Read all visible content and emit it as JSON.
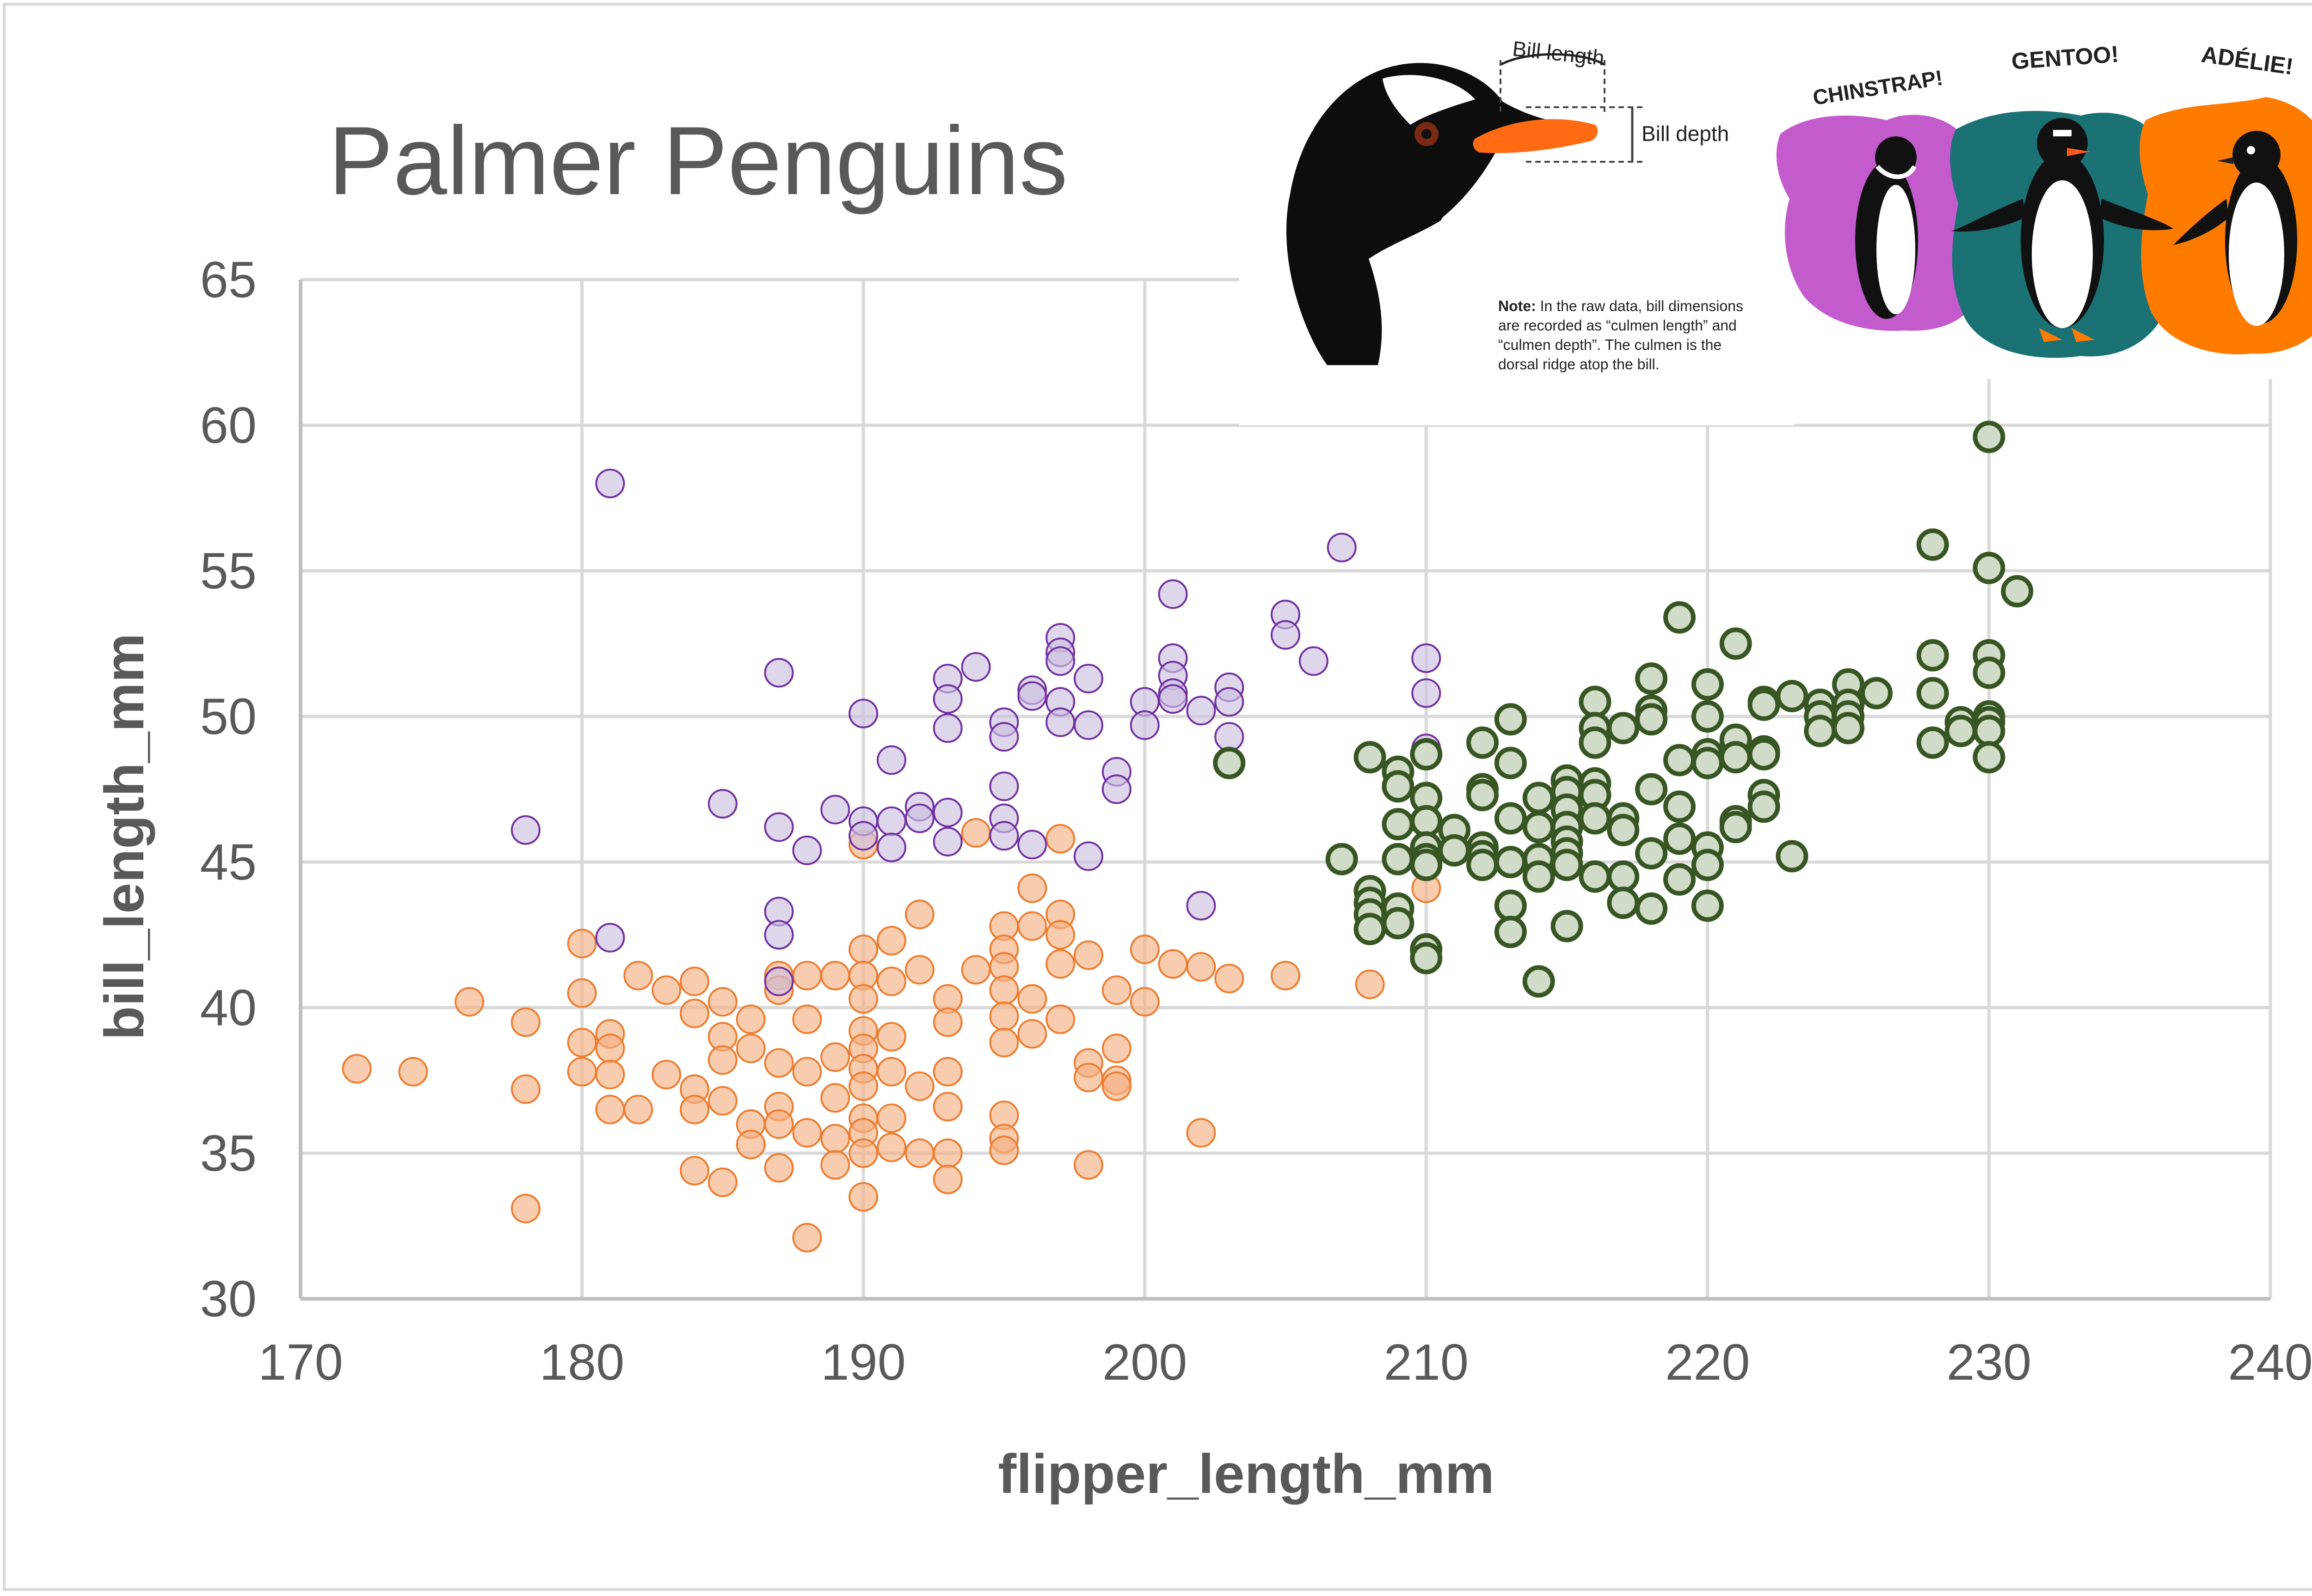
{
  "chart_data": {
    "type": "scatter",
    "title": "Palmer Penguins",
    "xlabel": "flipper_length_mm",
    "ylabel": "bill_length_mm",
    "xlim": [
      170,
      240
    ],
    "ylim": [
      30,
      65
    ],
    "xticks": [
      170,
      180,
      190,
      200,
      210,
      220,
      230,
      240
    ],
    "yticks": [
      30,
      35,
      40,
      45,
      50,
      55,
      60,
      65
    ],
    "grid": true,
    "legend": "none",
    "series": [
      {
        "color": "#f4b183",
        "stroke": "#ed7d31",
        "points": [
          [
            172,
            37.9
          ],
          [
            174,
            37.8
          ],
          [
            176,
            40.2
          ],
          [
            178,
            39.5
          ],
          [
            178,
            37.2
          ],
          [
            178,
            33.1
          ],
          [
            180,
            42.2
          ],
          [
            180,
            40.5
          ],
          [
            180,
            38.8
          ],
          [
            180,
            37.8
          ],
          [
            181,
            39.1
          ],
          [
            181,
            38.6
          ],
          [
            181,
            37.7
          ],
          [
            181,
            36.5
          ],
          [
            182,
            41.1
          ],
          [
            182,
            36.5
          ],
          [
            183,
            40.6
          ],
          [
            183,
            37.7
          ],
          [
            184,
            40.9
          ],
          [
            184,
            39.8
          ],
          [
            184,
            37.2
          ],
          [
            184,
            36.5
          ],
          [
            184,
            34.4
          ],
          [
            185,
            40.2
          ],
          [
            185,
            39.0
          ],
          [
            185,
            38.2
          ],
          [
            185,
            36.8
          ],
          [
            185,
            34.0
          ],
          [
            186,
            39.6
          ],
          [
            186,
            38.6
          ],
          [
            186,
            36.0
          ],
          [
            186,
            35.3
          ],
          [
            187,
            41.1
          ],
          [
            187,
            40.6
          ],
          [
            187,
            38.1
          ],
          [
            187,
            36.6
          ],
          [
            187,
            36.0
          ],
          [
            187,
            34.5
          ],
          [
            188,
            41.1
          ],
          [
            188,
            39.6
          ],
          [
            188,
            37.8
          ],
          [
            188,
            35.7
          ],
          [
            188,
            32.1
          ],
          [
            189,
            41.1
          ],
          [
            189,
            38.3
          ],
          [
            189,
            36.9
          ],
          [
            189,
            35.5
          ],
          [
            189,
            34.6
          ],
          [
            190,
            42.0
          ],
          [
            190,
            41.1
          ],
          [
            190,
            40.3
          ],
          [
            190,
            39.2
          ],
          [
            190,
            38.6
          ],
          [
            190,
            37.9
          ],
          [
            190,
            37.3
          ],
          [
            190,
            36.2
          ],
          [
            190,
            35.7
          ],
          [
            190,
            35.0
          ],
          [
            190,
            33.5
          ],
          [
            190,
            45.6
          ],
          [
            191,
            42.3
          ],
          [
            191,
            40.9
          ],
          [
            191,
            39.0
          ],
          [
            191,
            37.8
          ],
          [
            191,
            36.2
          ],
          [
            191,
            35.2
          ],
          [
            192,
            43.2
          ],
          [
            192,
            41.3
          ],
          [
            192,
            37.3
          ],
          [
            192,
            35.0
          ],
          [
            193,
            40.3
          ],
          [
            193,
            39.5
          ],
          [
            193,
            37.8
          ],
          [
            193,
            36.6
          ],
          [
            193,
            35.0
          ],
          [
            193,
            34.1
          ],
          [
            194,
            41.3
          ],
          [
            194,
            46.0
          ],
          [
            195,
            42.8
          ],
          [
            195,
            42.0
          ],
          [
            195,
            41.4
          ],
          [
            195,
            40.6
          ],
          [
            195,
            39.7
          ],
          [
            195,
            38.8
          ],
          [
            195,
            36.3
          ],
          [
            195,
            35.5
          ],
          [
            195,
            35.1
          ],
          [
            196,
            44.1
          ],
          [
            196,
            42.8
          ],
          [
            196,
            40.3
          ],
          [
            196,
            39.1
          ],
          [
            197,
            45.8
          ],
          [
            197,
            43.2
          ],
          [
            197,
            42.5
          ],
          [
            197,
            41.5
          ],
          [
            197,
            39.6
          ],
          [
            198,
            41.8
          ],
          [
            198,
            38.1
          ],
          [
            198,
            37.6
          ],
          [
            198,
            34.6
          ],
          [
            199,
            40.6
          ],
          [
            199,
            38.6
          ],
          [
            199,
            37.5
          ],
          [
            199,
            37.3
          ],
          [
            200,
            42.0
          ],
          [
            200,
            40.2
          ],
          [
            201,
            41.5
          ],
          [
            202,
            41.4
          ],
          [
            202,
            35.7
          ],
          [
            203,
            41.0
          ],
          [
            205,
            41.1
          ],
          [
            208,
            40.8
          ],
          [
            210,
            44.1
          ]
        ]
      },
      {
        "color": "#ccc0e0",
        "stroke": "#7030a0",
        "points": [
          [
            178,
            46.1
          ],
          [
            181,
            58.0
          ],
          [
            181,
            42.4
          ],
          [
            185,
            47.0
          ],
          [
            187,
            51.5
          ],
          [
            187,
            46.2
          ],
          [
            187,
            43.3
          ],
          [
            187,
            42.5
          ],
          [
            187,
            40.9
          ],
          [
            188,
            45.4
          ],
          [
            189,
            46.8
          ],
          [
            190,
            50.1
          ],
          [
            190,
            46.4
          ],
          [
            190,
            45.9
          ],
          [
            191,
            48.5
          ],
          [
            191,
            46.4
          ],
          [
            191,
            45.5
          ],
          [
            192,
            46.9
          ],
          [
            192,
            46.5
          ],
          [
            193,
            51.3
          ],
          [
            193,
            50.6
          ],
          [
            193,
            49.6
          ],
          [
            193,
            46.7
          ],
          [
            193,
            45.7
          ],
          [
            194,
            51.7
          ],
          [
            195,
            49.8
          ],
          [
            195,
            49.3
          ],
          [
            195,
            47.6
          ],
          [
            195,
            46.5
          ],
          [
            195,
            45.9
          ],
          [
            196,
            50.9
          ],
          [
            196,
            50.7
          ],
          [
            196,
            45.6
          ],
          [
            197,
            52.7
          ],
          [
            197,
            52.2
          ],
          [
            197,
            51.9
          ],
          [
            197,
            50.5
          ],
          [
            197,
            49.8
          ],
          [
            198,
            51.3
          ],
          [
            198,
            49.7
          ],
          [
            198,
            45.2
          ],
          [
            199,
            48.1
          ],
          [
            199,
            47.5
          ],
          [
            200,
            50.5
          ],
          [
            200,
            49.7
          ],
          [
            201,
            54.2
          ],
          [
            201,
            52.0
          ],
          [
            201,
            51.4
          ],
          [
            201,
            50.8
          ],
          [
            201,
            50.6
          ],
          [
            202,
            50.2
          ],
          [
            202,
            43.5
          ],
          [
            203,
            51.0
          ],
          [
            203,
            50.5
          ],
          [
            203,
            49.3
          ],
          [
            205,
            53.5
          ],
          [
            205,
            52.8
          ],
          [
            206,
            51.9
          ],
          [
            207,
            55.8
          ],
          [
            210,
            52.0
          ],
          [
            210,
            50.8
          ],
          [
            210,
            48.9
          ]
        ]
      },
      {
        "color": "#d0dcc8",
        "stroke": "#375623",
        "points": [
          [
            203,
            48.4
          ],
          [
            207,
            45.1
          ],
          [
            208,
            48.6
          ],
          [
            208,
            44.0
          ],
          [
            208,
            43.6
          ],
          [
            208,
            43.2
          ],
          [
            208,
            42.7
          ],
          [
            209,
            48.1
          ],
          [
            209,
            47.6
          ],
          [
            209,
            46.3
          ],
          [
            209,
            45.1
          ],
          [
            209,
            43.4
          ],
          [
            209,
            42.9
          ],
          [
            210,
            48.7
          ],
          [
            210,
            47.2
          ],
          [
            210,
            46.4
          ],
          [
            210,
            45.5
          ],
          [
            210,
            45.1
          ],
          [
            210,
            44.9
          ],
          [
            210,
            42.0
          ],
          [
            210,
            41.7
          ],
          [
            211,
            46.1
          ],
          [
            211,
            45.4
          ],
          [
            212,
            49.1
          ],
          [
            212,
            47.5
          ],
          [
            212,
            47.3
          ],
          [
            212,
            45.5
          ],
          [
            212,
            45.2
          ],
          [
            212,
            44.9
          ],
          [
            213,
            49.9
          ],
          [
            213,
            48.4
          ],
          [
            213,
            46.5
          ],
          [
            213,
            45.0
          ],
          [
            213,
            43.5
          ],
          [
            213,
            42.6
          ],
          [
            214,
            47.2
          ],
          [
            214,
            46.2
          ],
          [
            214,
            45.1
          ],
          [
            214,
            44.5
          ],
          [
            214,
            40.9
          ],
          [
            215,
            47.8
          ],
          [
            215,
            47.4
          ],
          [
            215,
            46.8
          ],
          [
            215,
            46.2
          ],
          [
            215,
            45.7
          ],
          [
            215,
            45.3
          ],
          [
            215,
            44.9
          ],
          [
            215,
            42.8
          ],
          [
            216,
            50.5
          ],
          [
            216,
            49.6
          ],
          [
            216,
            49.1
          ],
          [
            216,
            47.7
          ],
          [
            216,
            47.3
          ],
          [
            216,
            46.5
          ],
          [
            216,
            44.5
          ],
          [
            217,
            49.6
          ],
          [
            217,
            46.5
          ],
          [
            217,
            46.1
          ],
          [
            217,
            44.5
          ],
          [
            217,
            43.6
          ],
          [
            218,
            51.3
          ],
          [
            218,
            50.2
          ],
          [
            218,
            49.9
          ],
          [
            218,
            47.5
          ],
          [
            218,
            45.3
          ],
          [
            218,
            43.4
          ],
          [
            219,
            53.4
          ],
          [
            219,
            48.5
          ],
          [
            219,
            46.9
          ],
          [
            219,
            45.8
          ],
          [
            219,
            44.4
          ],
          [
            220,
            51.1
          ],
          [
            220,
            50.0
          ],
          [
            220,
            48.7
          ],
          [
            220,
            48.4
          ],
          [
            220,
            45.5
          ],
          [
            220,
            44.9
          ],
          [
            220,
            43.5
          ],
          [
            221,
            52.5
          ],
          [
            221,
            49.2
          ],
          [
            221,
            48.6
          ],
          [
            221,
            46.4
          ],
          [
            221,
            46.2
          ],
          [
            222,
            50.5
          ],
          [
            222,
            50.4
          ],
          [
            222,
            48.8
          ],
          [
            222,
            48.7
          ],
          [
            222,
            47.3
          ],
          [
            222,
            46.9
          ],
          [
            223,
            50.7
          ],
          [
            223,
            45.2
          ],
          [
            224,
            50.4
          ],
          [
            224,
            50.0
          ],
          [
            224,
            49.5
          ],
          [
            225,
            51.1
          ],
          [
            225,
            50.4
          ],
          [
            225,
            50.0
          ],
          [
            225,
            49.6
          ],
          [
            226,
            50.8
          ],
          [
            228,
            55.9
          ],
          [
            228,
            52.1
          ],
          [
            228,
            50.8
          ],
          [
            228,
            49.1
          ],
          [
            229,
            49.8
          ],
          [
            229,
            49.5
          ],
          [
            230,
            59.6
          ],
          [
            230,
            55.1
          ],
          [
            230,
            52.1
          ],
          [
            230,
            51.5
          ],
          [
            230,
            50.0
          ],
          [
            230,
            49.8
          ],
          [
            230,
            49.5
          ],
          [
            230,
            48.6
          ],
          [
            231,
            54.3
          ]
        ]
      }
    ]
  },
  "illustration": {
    "bill_length_label": "Bill length",
    "bill_depth_label": "Bill depth",
    "note_bold": "Note:",
    "note_lines": [
      " In the raw data, bill dimensions",
      "are recorded as “culmen length” and",
      "“culmen depth”. The culmen is the",
      "dorsal ridge atop the bill."
    ],
    "species": [
      {
        "label": "CHINSTRAP!",
        "color": "#c45bcd"
      },
      {
        "label": "GENTOO!",
        "color": "#1a7274"
      },
      {
        "label": "ADÉLIE!",
        "color": "#ff7b00"
      }
    ]
  }
}
